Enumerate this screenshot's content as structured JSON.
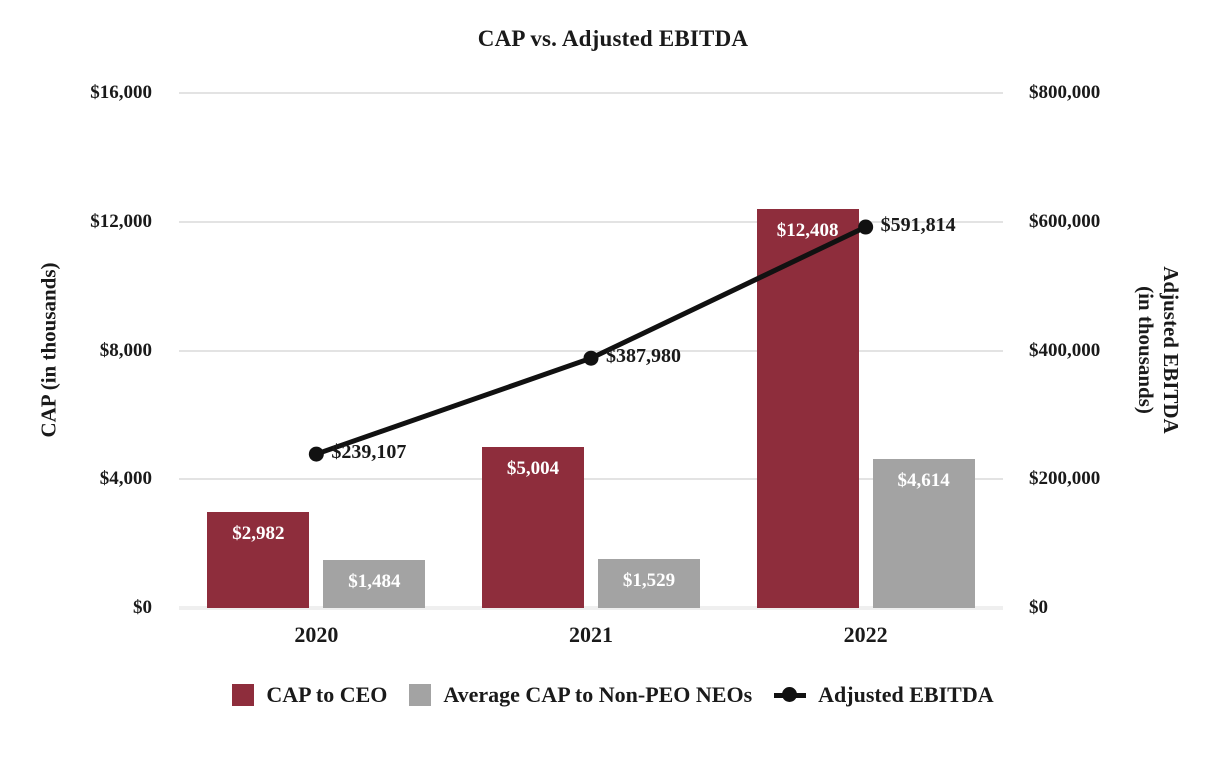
{
  "chart_data": {
    "type": "bar+line combo",
    "title": "CAP vs. Adjusted EBITDA",
    "categories": [
      "2020",
      "2021",
      "2022"
    ],
    "series": [
      {
        "name": "CAP to CEO",
        "type": "bar",
        "axis": "left",
        "color": "#8e2d3c",
        "values": [
          2982,
          5004,
          12408
        ],
        "labels": [
          "$2,982",
          "$5,004",
          "$12,408"
        ],
        "label_color": "#ffffff"
      },
      {
        "name": "Average CAP to Non-PEO NEOs",
        "type": "bar",
        "axis": "left",
        "color": "#a3a3a3",
        "values": [
          1484,
          1529,
          4614
        ],
        "labels": [
          "$1,484",
          "$1,529",
          "$4,614"
        ],
        "label_color": "#ffffff"
      },
      {
        "name": "Adjusted EBITDA",
        "type": "line",
        "axis": "right",
        "color": "#111111",
        "values": [
          239107,
          387980,
          591814
        ],
        "labels": [
          "$239,107",
          "$387,980",
          "$591,814"
        ],
        "label_color": "#1a1a1a"
      }
    ],
    "left_axis": {
      "label": "CAP (in thousands)",
      "min": 0,
      "max": 16000,
      "tick_values": [
        0,
        4000,
        8000,
        12000,
        16000
      ],
      "tick_labels": [
        "$0",
        "$4,000",
        "$8,000",
        "$12,000",
        "$16,000"
      ]
    },
    "right_axis": {
      "label_line1": "Adjusted EBITDA",
      "label_line2": "(in thousands)",
      "min": 0,
      "max": 800000,
      "tick_values": [
        0,
        200000,
        400000,
        600000,
        800000
      ],
      "tick_labels": [
        "$0",
        "$200,000",
        "$400,000",
        "$600,000",
        "$800,000"
      ]
    },
    "grid": "horizontal gridlines on, white background",
    "legend_position": "bottom center",
    "colors": {
      "ceo_bar": "#8e2d3c",
      "neo_bar": "#a3a3a3",
      "line": "#111111",
      "gridline": "#e3e3e3"
    }
  }
}
